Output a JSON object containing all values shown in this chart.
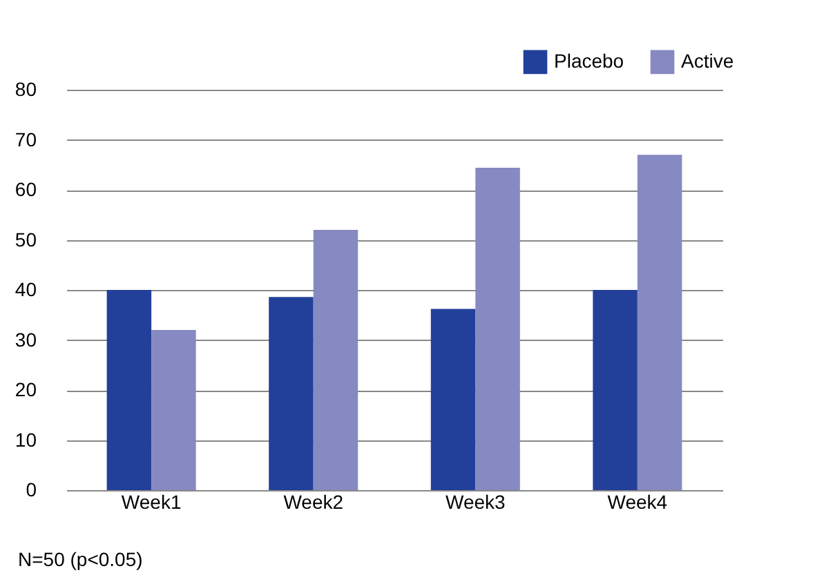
{
  "chart_data": {
    "type": "bar",
    "categories": [
      "Week1",
      "Week2",
      "Week3",
      "Week4"
    ],
    "series": [
      {
        "name": "Placebo",
        "color": "#22409a",
        "values": [
          40,
          38.6,
          36.2,
          40
        ]
      },
      {
        "name": "Active",
        "color": "#8789c2",
        "values": [
          32,
          52,
          64.4,
          67
        ]
      }
    ],
    "ylim": [
      0,
      80
    ],
    "yticks": [
      0,
      10,
      20,
      30,
      40,
      50,
      60,
      70,
      80
    ],
    "grid": "y",
    "legend": "top right",
    "annotations": [
      "N=50 (p<0.05)"
    ]
  }
}
